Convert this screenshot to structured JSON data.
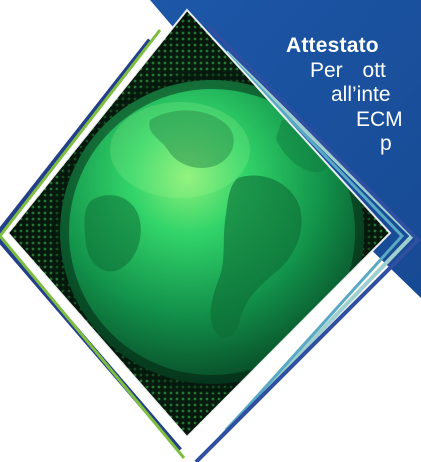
{
  "caption": {
    "title": "Attestato",
    "lines": [
      "Per ott",
      "all’inte",
      "ECM",
      "p"
    ]
  },
  "colors": {
    "panel_blue": "#1a4f9c",
    "stripe_green": "#7dbd3f",
    "stripe_navy": "#243f8a",
    "stripe_teal": "#7fc3c3",
    "globe_green": "#2fd06a",
    "globe_dark": "#04140a"
  },
  "icons": {
    "graphic": "earth-globe-icon"
  }
}
